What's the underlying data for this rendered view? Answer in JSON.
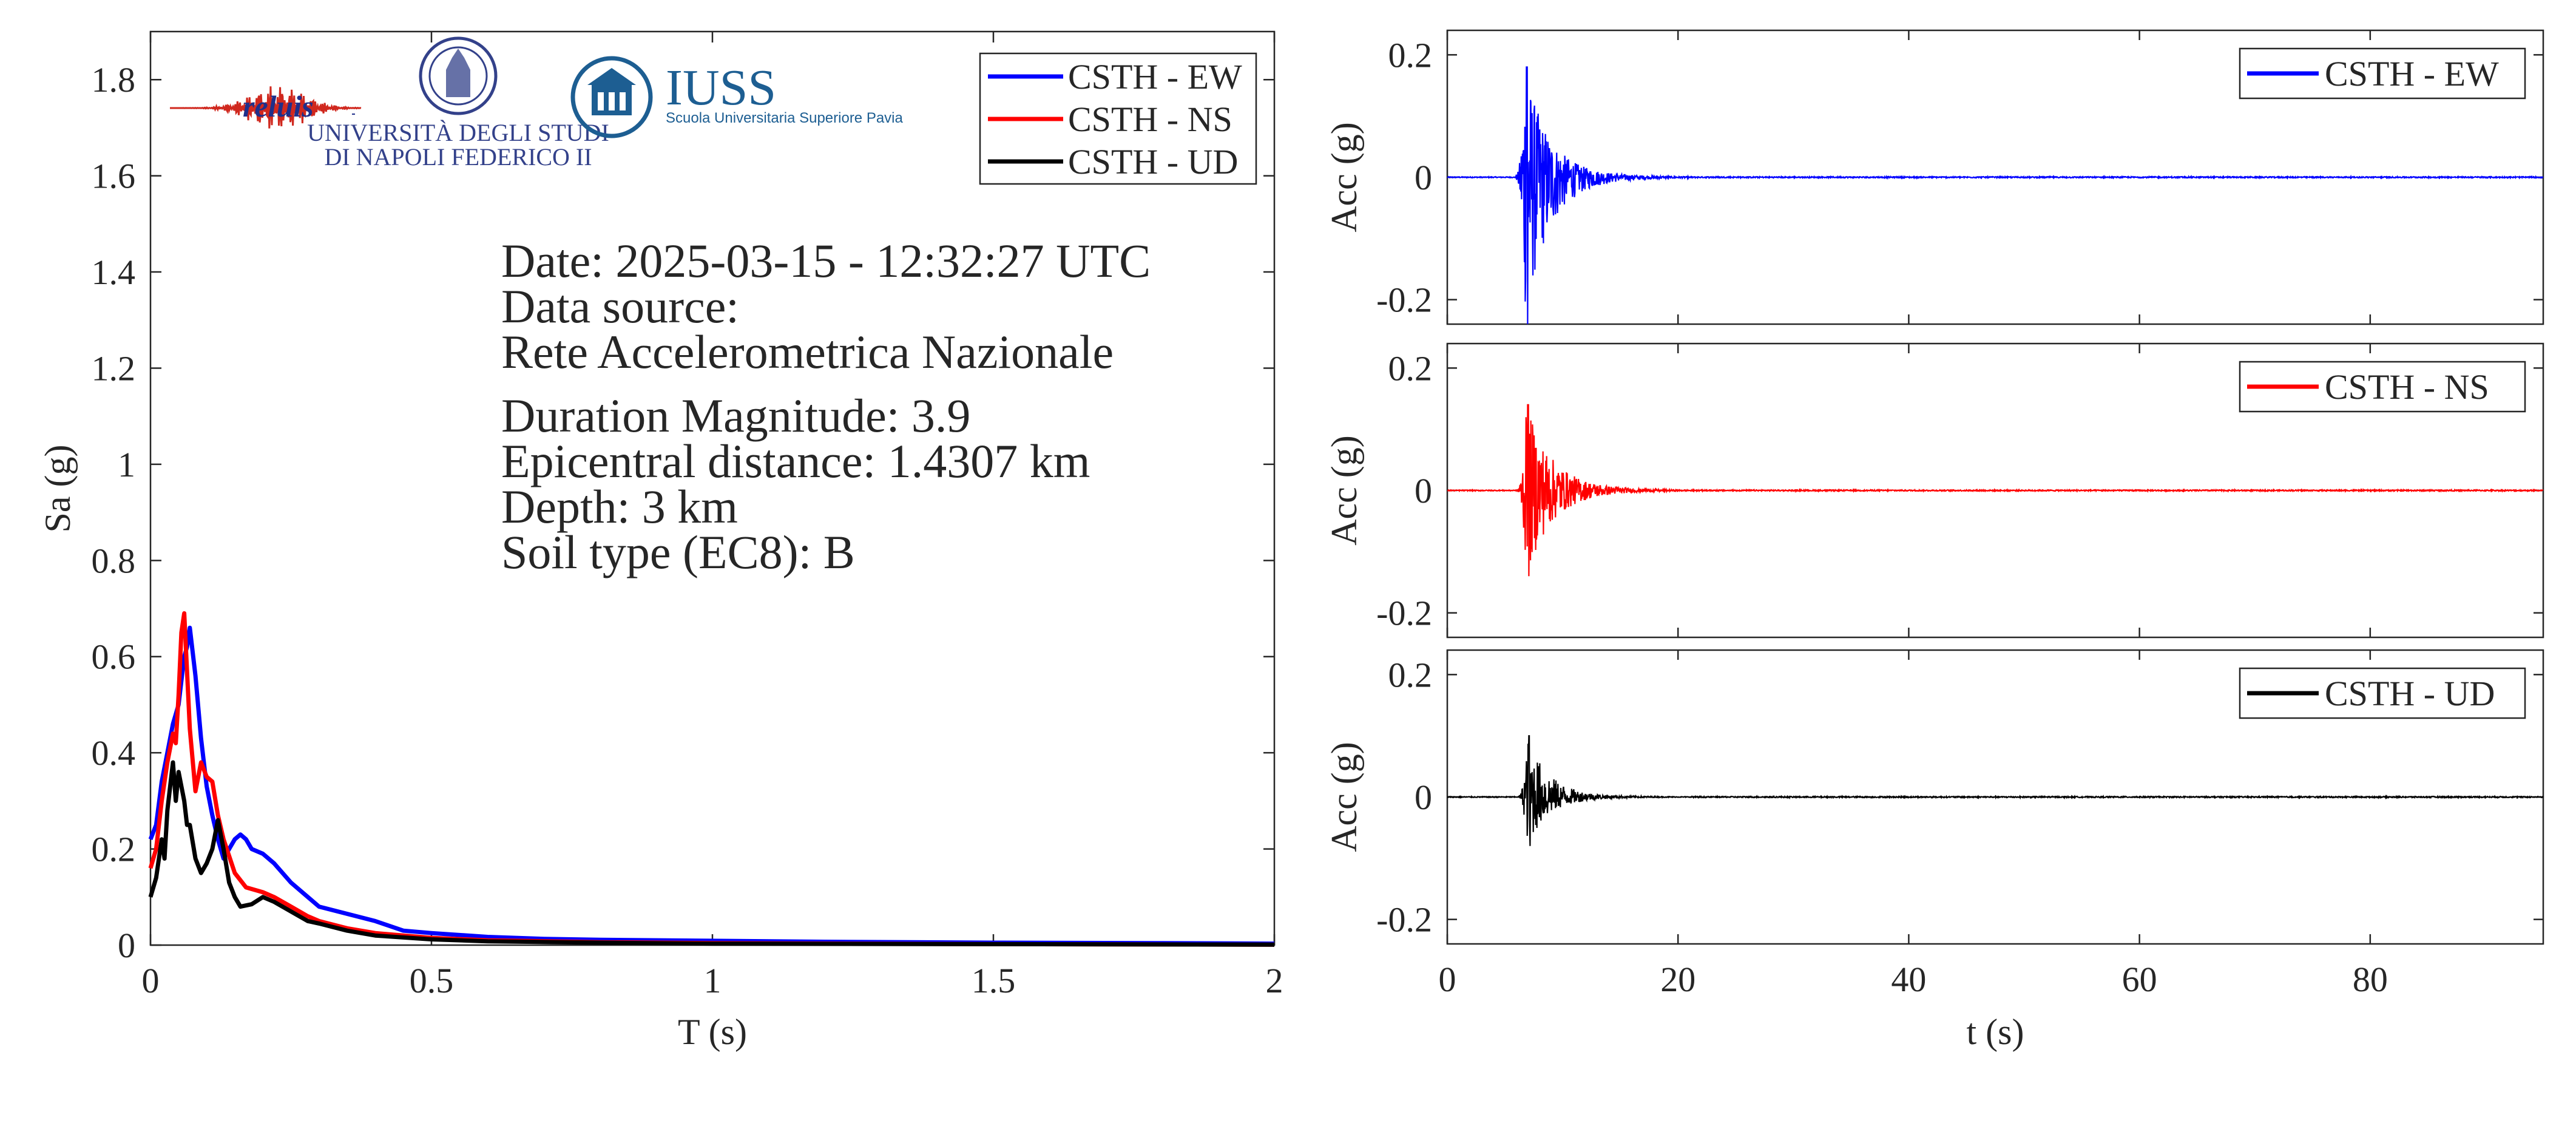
{
  "info_lines": [
    "Date: 2025-03-15 - 12:32:27 UTC",
    "Data source:",
    "Rete Accelerometrica Nazionale",
    "Duration Magnitude: 3.9",
    "Epicentral distance: 1.4307 km",
    "Depth: 3 km",
    "Soil type (EC8): B"
  ],
  "logos": {
    "reluis": "reluis",
    "unina_line1": "UNIVERSITÀ DEGLI STUDI",
    "unina_line2": "DI NAPOLI FEDERICO II",
    "iuss_title": "IUSS",
    "iuss_subtitle": "Scuola Universitaria Superiore Pavia"
  },
  "colors": {
    "EW": "#0000ff",
    "NS": "#ff0000",
    "UD": "#000000"
  },
  "chart_data": [
    {
      "type": "line",
      "title": "",
      "xlabel": "T (s)",
      "ylabel": "Sa (g)",
      "xlim": [
        0,
        2
      ],
      "ylim": [
        0,
        1.9
      ],
      "xticks": [
        0,
        0.5,
        1,
        1.5,
        2
      ],
      "xtick_labels": [
        "0",
        "0.5",
        "1",
        "1.5",
        "2"
      ],
      "yticks": [
        0,
        0.2,
        0.4,
        0.6,
        0.8,
        1,
        1.2,
        1.4,
        1.6,
        1.8
      ],
      "ytick_labels": [
        "0",
        "0.2",
        "0.4",
        "0.6",
        "0.8",
        "1",
        "1.2",
        "1.4",
        "1.6",
        "1.8"
      ],
      "legend_position": "top-right",
      "grid": false,
      "series": [
        {
          "name": "CSTH - EW",
          "color": "#0000ff",
          "x": [
            0,
            0.01,
            0.02,
            0.03,
            0.04,
            0.05,
            0.06,
            0.065,
            0.07,
            0.08,
            0.09,
            0.1,
            0.11,
            0.12,
            0.13,
            0.14,
            0.15,
            0.16,
            0.17,
            0.18,
            0.2,
            0.22,
            0.25,
            0.28,
            0.3,
            0.35,
            0.4,
            0.45,
            0.5,
            0.6,
            0.7,
            0.8,
            1.0,
            1.2,
            1.5,
            1.8,
            2.0
          ],
          "y": [
            0.22,
            0.25,
            0.34,
            0.4,
            0.46,
            0.5,
            0.6,
            0.62,
            0.66,
            0.56,
            0.43,
            0.33,
            0.27,
            0.22,
            0.18,
            0.2,
            0.22,
            0.23,
            0.22,
            0.2,
            0.19,
            0.17,
            0.13,
            0.1,
            0.08,
            0.065,
            0.05,
            0.03,
            0.025,
            0.017,
            0.013,
            0.011,
            0.009,
            0.007,
            0.005,
            0.004,
            0.003
          ]
        },
        {
          "name": "CSTH - NS",
          "color": "#ff0000",
          "x": [
            0,
            0.01,
            0.02,
            0.03,
            0.04,
            0.045,
            0.05,
            0.055,
            0.06,
            0.07,
            0.08,
            0.09,
            0.1,
            0.11,
            0.12,
            0.13,
            0.15,
            0.17,
            0.2,
            0.22,
            0.25,
            0.28,
            0.3,
            0.35,
            0.4,
            0.5,
            0.6,
            0.8,
            1.0,
            1.5,
            2.0
          ],
          "y": [
            0.16,
            0.2,
            0.3,
            0.38,
            0.44,
            0.42,
            0.52,
            0.65,
            0.69,
            0.45,
            0.32,
            0.38,
            0.35,
            0.34,
            0.27,
            0.22,
            0.15,
            0.12,
            0.11,
            0.1,
            0.08,
            0.06,
            0.05,
            0.035,
            0.025,
            0.015,
            0.01,
            0.006,
            0.004,
            0.002,
            0.001
          ]
        },
        {
          "name": "CSTH - UD",
          "color": "#000000",
          "x": [
            0,
            0.01,
            0.02,
            0.025,
            0.03,
            0.04,
            0.045,
            0.05,
            0.06,
            0.065,
            0.07,
            0.08,
            0.09,
            0.1,
            0.11,
            0.12,
            0.13,
            0.14,
            0.15,
            0.16,
            0.18,
            0.2,
            0.22,
            0.25,
            0.28,
            0.3,
            0.35,
            0.4,
            0.5,
            0.6,
            0.8,
            1.0,
            1.5,
            2.0
          ],
          "y": [
            0.1,
            0.14,
            0.22,
            0.18,
            0.28,
            0.38,
            0.3,
            0.36,
            0.3,
            0.25,
            0.25,
            0.18,
            0.15,
            0.17,
            0.2,
            0.26,
            0.2,
            0.13,
            0.1,
            0.08,
            0.085,
            0.1,
            0.09,
            0.07,
            0.05,
            0.045,
            0.03,
            0.02,
            0.012,
            0.008,
            0.005,
            0.003,
            0.002,
            0.001
          ]
        }
      ]
    },
    {
      "type": "line",
      "title": "",
      "xlabel": "",
      "ylabel": "Acc (g)",
      "xlim": [
        0,
        95
      ],
      "ylim": [
        -0.24,
        0.24
      ],
      "yticks": [
        -0.2,
        0,
        0.2
      ],
      "ytick_labels": [
        "-0.2",
        "0",
        "0.2"
      ],
      "legend_position": "top-right",
      "series": [
        {
          "name": "CSTH - EW",
          "color": "#0000ff",
          "event_time": 6.9,
          "peak_pos": 0.18,
          "peak_neg": -0.24,
          "decay": 2.0
        }
      ]
    },
    {
      "type": "line",
      "title": "",
      "xlabel": "",
      "ylabel": "Acc (g)",
      "xlim": [
        0,
        95
      ],
      "ylim": [
        -0.24,
        0.24
      ],
      "yticks": [
        -0.2,
        0,
        0.2
      ],
      "ytick_labels": [
        "-0.2",
        "0",
        "0.2"
      ],
      "legend_position": "top-right",
      "series": [
        {
          "name": "CSTH - NS",
          "color": "#ff0000",
          "event_time": 7.0,
          "peak_pos": 0.14,
          "peak_neg": -0.14,
          "decay": 2.2
        }
      ]
    },
    {
      "type": "line",
      "title": "",
      "xlabel": "t (s)",
      "ylabel": "Acc (g)",
      "xlim": [
        0,
        95
      ],
      "ylim": [
        -0.24,
        0.24
      ],
      "xticks": [
        0,
        20,
        40,
        60,
        80
      ],
      "xtick_labels": [
        "0",
        "20",
        "40",
        "60",
        "80"
      ],
      "yticks": [
        -0.2,
        0,
        0.2
      ],
      "ytick_labels": [
        "-0.2",
        "0",
        "0.2"
      ],
      "legend_position": "top-right",
      "series": [
        {
          "name": "CSTH - UD",
          "color": "#000000",
          "event_time": 7.1,
          "peak_pos": 0.1,
          "peak_neg": -0.08,
          "decay": 1.8
        }
      ]
    }
  ]
}
